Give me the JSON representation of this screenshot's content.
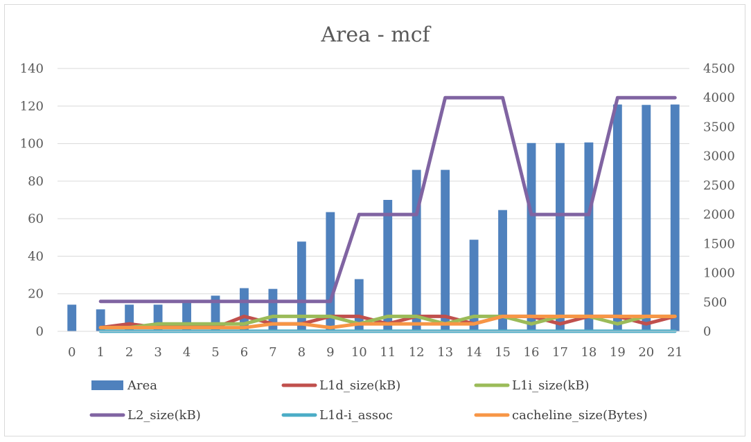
{
  "chart_data": {
    "type": "bar",
    "title": "Area - mcf",
    "categories": [
      "0",
      "1",
      "2",
      "3",
      "4",
      "5",
      "6",
      "7",
      "8",
      "9",
      "10",
      "11",
      "12",
      "13",
      "14",
      "15",
      "16",
      "17",
      "18",
      "19",
      "20",
      "21"
    ],
    "primary_axis": {
      "min": 0,
      "max": 140,
      "step": 20,
      "ticks": [
        "0",
        "20",
        "40",
        "60",
        "80",
        "100",
        "120",
        "140"
      ]
    },
    "secondary_axis": {
      "min": 0,
      "max": 4500,
      "step": 500,
      "ticks": [
        "0",
        "500",
        "1000",
        "1500",
        "2000",
        "2500",
        "3000",
        "3500",
        "4000",
        "4500"
      ]
    },
    "grid": true,
    "legend_position": "bottom",
    "series": [
      {
        "name": "Area",
        "kind": "bar",
        "axis": "primary",
        "color": "#4f81bd",
        "values": [
          14.2,
          11.7,
          14.2,
          14.2,
          16.0,
          19.0,
          23.0,
          22.6,
          47.8,
          63.5,
          27.8,
          70.0,
          86.0,
          86.0,
          48.8,
          64.6,
          100.3,
          100.3,
          100.6,
          120.8,
          120.6,
          120.8
        ]
      },
      {
        "name": "L1d_size(kB)",
        "kind": "line",
        "axis": "secondary",
        "color": "#c0504d",
        "values": [
          null,
          64,
          128,
          64,
          128,
          64,
          256,
          128,
          128,
          256,
          256,
          128,
          256,
          256,
          128,
          256,
          256,
          128,
          256,
          256,
          128,
          256
        ]
      },
      {
        "name": "L1i_size(kB)",
        "kind": "line",
        "axis": "secondary",
        "color": "#9bbb59",
        "values": [
          null,
          64,
          64,
          128,
          128,
          128,
          128,
          256,
          256,
          256,
          128,
          256,
          256,
          128,
          256,
          256,
          128,
          256,
          256,
          128,
          256,
          256
        ]
      },
      {
        "name": "L2_size(kB)",
        "kind": "line",
        "axis": "secondary",
        "color": "#8064a2",
        "values": [
          null,
          512,
          512,
          512,
          512,
          512,
          512,
          512,
          512,
          512,
          2000,
          2000,
          2000,
          4000,
          4000,
          4000,
          2000,
          2000,
          2000,
          4000,
          4000,
          4000
        ]
      },
      {
        "name": "L1d-i_assoc",
        "kind": "line",
        "axis": "secondary",
        "color": "#4bacc6",
        "values": [
          null,
          2,
          2,
          2,
          2,
          2,
          2,
          2,
          2,
          2,
          2,
          2,
          2,
          2,
          2,
          2,
          2,
          2,
          2,
          2,
          2,
          2
        ]
      },
      {
        "name": "cacheline_size(Bytes)",
        "kind": "line",
        "axis": "secondary",
        "color": "#f79646",
        "values": [
          null,
          64,
          64,
          64,
          64,
          64,
          64,
          128,
          128,
          64,
          128,
          128,
          128,
          128,
          128,
          256,
          256,
          256,
          256,
          256,
          256,
          256
        ]
      }
    ]
  }
}
